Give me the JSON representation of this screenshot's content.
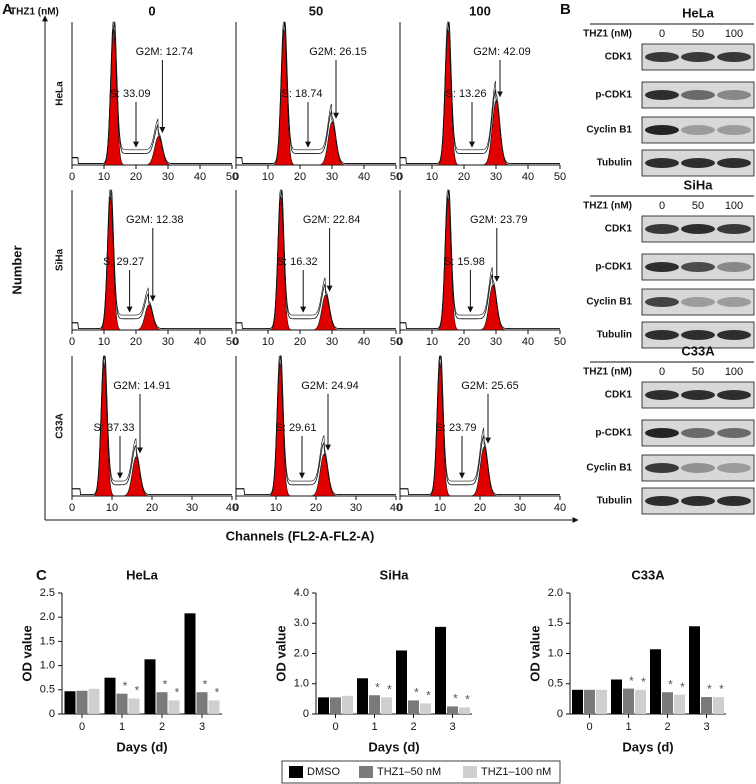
{
  "panel_labels": [
    "A",
    "B",
    "C"
  ],
  "panel_a": {
    "concentration_label": "THZ1 (nM)",
    "doses": [
      "0",
      "50",
      "100"
    ],
    "y_label": "Number",
    "x_label": "Channels (FL2-A-FL2-A)",
    "rows": [
      {
        "cell_line": "HeLa",
        "xticks": [
          0,
          10,
          20,
          30,
          40,
          50
        ],
        "cells": [
          {
            "g2m": "G2M: 12.74",
            "s": "S: 33.09"
          },
          {
            "g2m": "G2M: 26.15",
            "s": "S: 18.74"
          },
          {
            "g2m": "G2M: 42.09",
            "s": "S: 13.26"
          }
        ]
      },
      {
        "cell_line": "SiHa",
        "xticks": [
          0,
          10,
          20,
          30,
          40,
          50
        ],
        "cells": [
          {
            "g2m": "G2M: 12.38",
            "s": "S: 29.27"
          },
          {
            "g2m": "G2M: 22.84",
            "s": "S: 16.32"
          },
          {
            "g2m": "G2M: 23.79",
            "s": "S: 15.98"
          }
        ]
      },
      {
        "cell_line": "C33A",
        "xticks": [
          0,
          10,
          20,
          30,
          40
        ],
        "cells": [
          {
            "g2m": "G2M: 14.91",
            "s": "S: 37.33"
          },
          {
            "g2m": "G2M: 24.94",
            "s": "S: 29.61"
          },
          {
            "g2m": "G2M: 25.65",
            "s": "S: 23.79"
          }
        ]
      }
    ]
  },
  "panel_b": {
    "blots": [
      {
        "cell_line": "HeLa",
        "treatment_label": "THZ1 (nM)",
        "doses": [
          "0",
          "50",
          "100"
        ],
        "proteins": [
          "CDK1",
          "p-CDK1",
          "Cyclin B1",
          "Tubulin"
        ]
      },
      {
        "cell_line": "SiHa",
        "treatment_label": "THZ1 (nM)",
        "doses": [
          "0",
          "50",
          "100"
        ],
        "proteins": [
          "CDK1",
          "p-CDK1",
          "Cyclin B1",
          "Tubulin"
        ]
      },
      {
        "cell_line": "C33A",
        "treatment_label": "THZ1 (nM)",
        "doses": [
          "0",
          "50",
          "100"
        ],
        "proteins": [
          "CDK1",
          "p-CDK1",
          "Cyclin B1",
          "Tubulin"
        ]
      }
    ]
  },
  "chart_data": [
    {
      "type": "bar",
      "title": "HeLa",
      "x_label": "Days (d)",
      "y_label": "OD value",
      "significance": "*",
      "categories": [
        "0",
        "1",
        "2",
        "3"
      ],
      "ylim": [
        0,
        2.5
      ],
      "yticks": [
        0,
        0.5,
        {
          "value": 1,
          "label": "1.0"
        },
        1.5,
        {
          "value": 2,
          "label": "2.0"
        },
        2.5
      ],
      "series": [
        {
          "name": "DMSO",
          "color": "#000000",
          "values": [
            0.47,
            0.75,
            1.13,
            2.08
          ]
        },
        {
          "name": "THZ1–50 nM",
          "color": "#7a7a7a",
          "values": [
            0.48,
            0.42,
            0.45,
            0.45
          ]
        },
        {
          "name": "THZ1–100 nM",
          "color": "#cfcfcf",
          "values": [
            0.52,
            0.32,
            0.28,
            0.28
          ]
        }
      ]
    },
    {
      "type": "bar",
      "title": "SiHa",
      "x_label": "Days (d)",
      "y_label": "OD value",
      "significance": "*",
      "categories": [
        "0",
        "1",
        "2",
        "3"
      ],
      "ylim": [
        0,
        4
      ],
      "yticks": [
        0,
        {
          "value": 1,
          "label": "1.0"
        },
        {
          "value": 2,
          "label": "2.0"
        },
        {
          "value": 3,
          "label": "3.0"
        },
        {
          "value": 4,
          "label": "4.0"
        }
      ],
      "series": [
        {
          "name": "DMSO",
          "color": "#000000",
          "values": [
            0.55,
            1.18,
            2.1,
            2.88
          ]
        },
        {
          "name": "THZ1–50 nM",
          "color": "#7a7a7a",
          "values": [
            0.55,
            0.62,
            0.45,
            0.25
          ]
        },
        {
          "name": "THZ1–100 nM",
          "color": "#cfcfcf",
          "values": [
            0.6,
            0.55,
            0.35,
            0.22
          ]
        }
      ]
    },
    {
      "type": "bar",
      "title": "C33A",
      "x_label": "Days (d)",
      "y_label": "OD value",
      "significance": "*",
      "categories": [
        "0",
        "1",
        "2",
        "3"
      ],
      "ylim": [
        0,
        2
      ],
      "yticks": [
        0,
        0.5,
        {
          "value": 1,
          "label": "1.0"
        },
        1.5,
        {
          "value": 2,
          "label": "2.0"
        }
      ],
      "series": [
        {
          "name": "DMSO",
          "color": "#000000",
          "values": [
            0.4,
            0.57,
            1.07,
            1.45
          ]
        },
        {
          "name": "THZ1–50 nM",
          "color": "#7a7a7a",
          "values": [
            0.4,
            0.42,
            0.36,
            0.28
          ]
        },
        {
          "name": "THZ1–100 nM",
          "color": "#cfcfcf",
          "values": [
            0.4,
            0.4,
            0.32,
            0.28
          ]
        }
      ]
    }
  ]
}
